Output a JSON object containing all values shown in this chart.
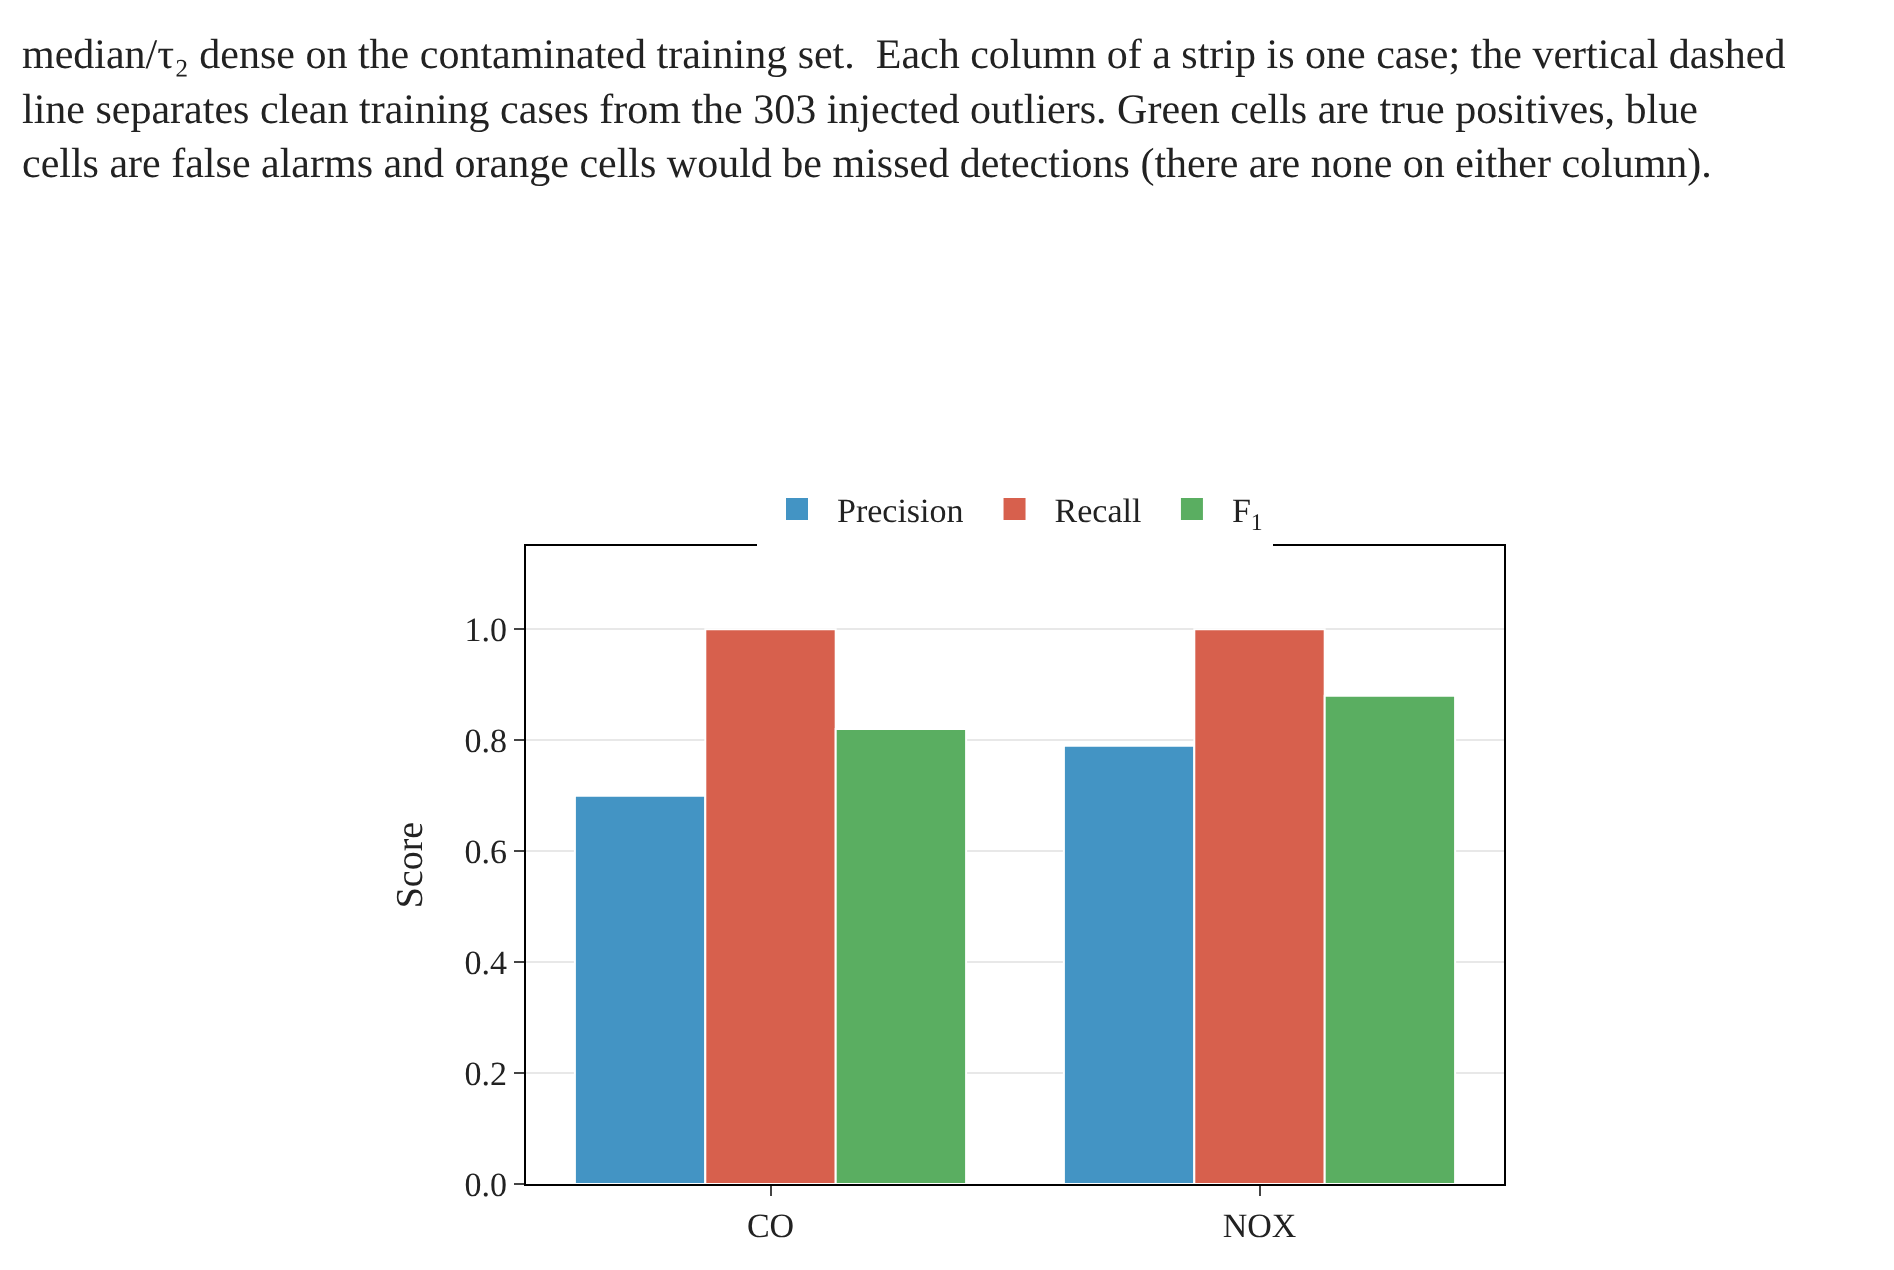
{
  "chart_data": {
    "type": "bar",
    "categories": [
      "CO",
      "NOX"
    ],
    "series": [
      {
        "name": "Precision",
        "color": "#4394c4",
        "values": [
          0.7,
          0.79
        ]
      },
      {
        "name": "Recall",
        "color": "#d7604d",
        "values": [
          1.0,
          1.0
        ]
      },
      {
        "name": "F$_{1}$",
        "color": "#5aae61",
        "values": [
          0.82,
          0.88
        ]
      }
    ],
    "ylabel": "Score",
    "ylim": [
      0,
      1.15
    ],
    "yticks": [
      {
        "value": 0,
        "label": "0.0"
      },
      0.2,
      0.4,
      0.6,
      0.8,
      {
        "value": 1,
        "label": "1.0"
      }
    ],
    "grid": "y",
    "legend": "top",
    "annotations": [
      "median/τ₂ dense on the contaminated training set.  Each column of a strip is one case; the vertical dashed line separates clean training cases from the 303 injected outliers. Green cells are true positives, blue cells are false alarms and orange cells would be missed detections (there are none on either column)."
    ]
  }
}
